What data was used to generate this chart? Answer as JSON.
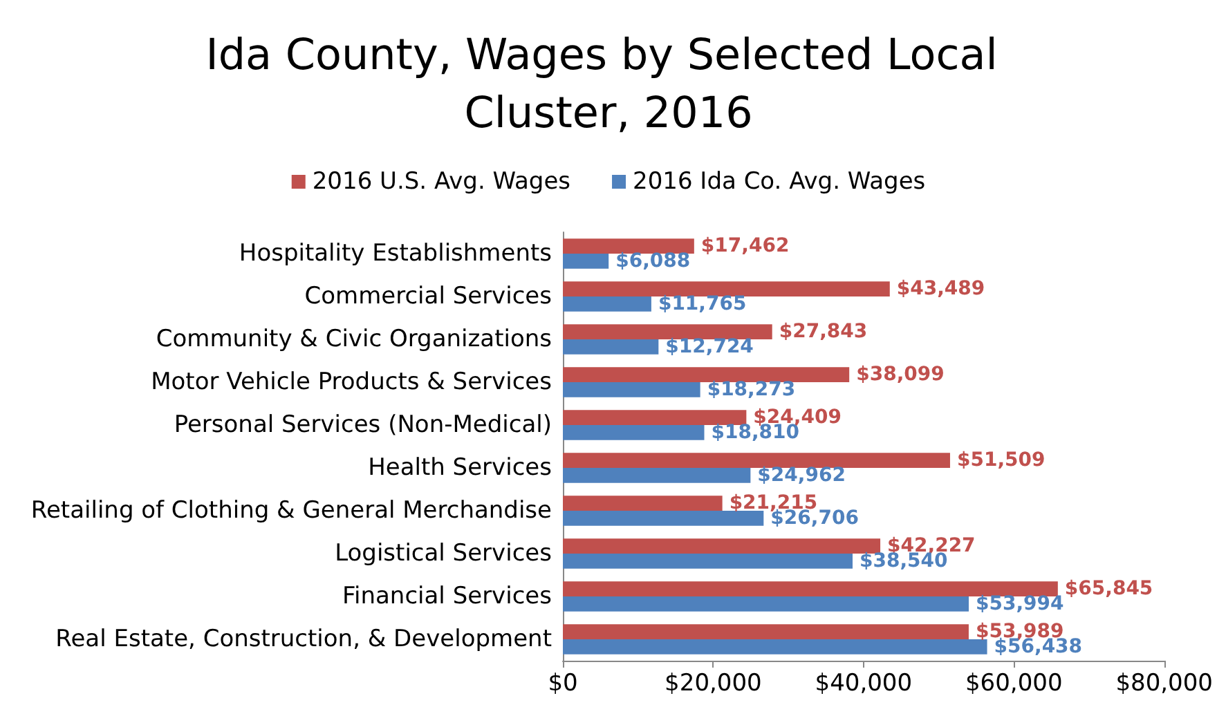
{
  "chart_data": {
    "type": "bar",
    "orientation": "horizontal",
    "title": "Ida County, Wages by Selected Local Cluster, 2016",
    "categories": [
      "Hospitality Establishments",
      "Commercial Services",
      "Community & Civic Organizations",
      "Motor Vehicle Products & Services",
      "Personal Services (Non-Medical)",
      "Health Services",
      "Retailing of Clothing & General Merchandise",
      "Logistical Services",
      "Financial Services",
      "Real Estate, Construction, & Development"
    ],
    "series": [
      {
        "name": "2016 U.S. Avg. Wages",
        "color": "#c0504d",
        "values": [
          17462,
          43489,
          27843,
          38099,
          24409,
          51509,
          21215,
          42227,
          65845,
          53989
        ],
        "value_labels": [
          "$17,462",
          "$43,489",
          "$27,843",
          "$38,099",
          "$24,409",
          "$51,509",
          "$21,215",
          "$42,227",
          "$65,845",
          "$53,989"
        ]
      },
      {
        "name": "2016 Ida Co. Avg. Wages",
        "color": "#4f81bd",
        "values": [
          6088,
          11765,
          12724,
          18273,
          18810,
          24962,
          26706,
          38540,
          53994,
          56438
        ],
        "value_labels": [
          "$6,088",
          "$11,765",
          "$12,724",
          "$18,273",
          "$18,810",
          "$24,962",
          "$26,706",
          "$38,540",
          "$53,994",
          "$56,438"
        ]
      }
    ],
    "xlim": [
      0,
      80000
    ],
    "xticks": [
      {
        "value": 0,
        "label": "$0"
      },
      {
        "value": 20000,
        "label": "$20,000"
      },
      {
        "value": 40000,
        "label": "$40,000"
      },
      {
        "value": 60000,
        "label": "$60,000"
      },
      {
        "value": 80000,
        "label": "$80,000"
      }
    ],
    "legend": "top",
    "grid": false
  }
}
